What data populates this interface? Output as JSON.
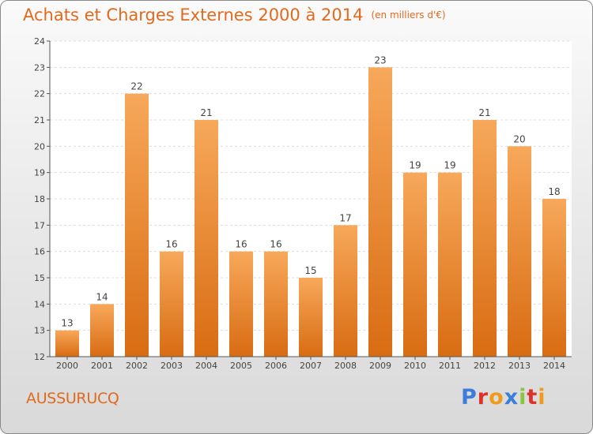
{
  "chart_data": {
    "type": "bar",
    "title": "Achats et Charges Externes 2000 à 2014",
    "subtitle": "(en milliers d'€)",
    "categories": [
      "2000",
      "2001",
      "2002",
      "2003",
      "2004",
      "2005",
      "2006",
      "2007",
      "2008",
      "2009",
      "2010",
      "2011",
      "2012",
      "2013",
      "2014"
    ],
    "values": [
      13,
      14,
      22,
      16,
      21,
      16,
      16,
      15,
      17,
      23,
      19,
      19,
      21,
      20,
      18
    ],
    "ylim": [
      12,
      24
    ],
    "yticks": [
      12,
      13,
      14,
      15,
      16,
      17,
      18,
      19,
      20,
      21,
      22,
      23,
      24
    ],
    "grid": true,
    "xlabel": "",
    "ylabel": ""
  },
  "location": "AUSSURUCQ",
  "logo": {
    "text": "Proxiti",
    "colors": [
      "#3b7dd8",
      "#e0302a",
      "#f09a1a",
      "#3b7dd8",
      "#8cc63e",
      "#e0302a",
      "#f09a1a"
    ]
  },
  "colors": {
    "bar_light": "#f7a85a",
    "bar_dark": "#d86c12",
    "title": "#e06a1e"
  }
}
